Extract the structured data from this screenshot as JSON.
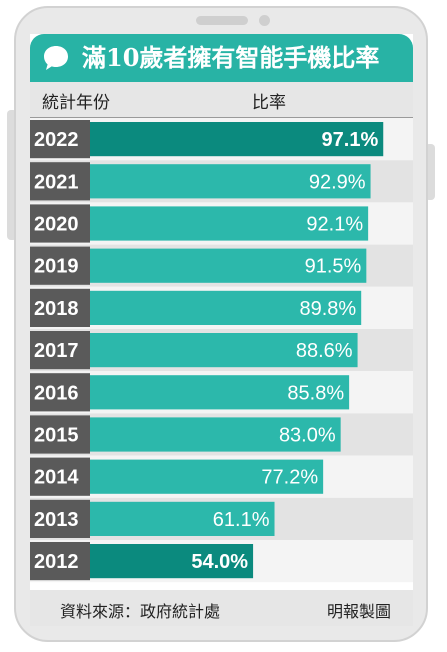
{
  "title": "滿10歲者擁有智能手機比率",
  "header": {
    "year_label": "統計年份",
    "ratio_label": "比率"
  },
  "footer": {
    "source": "資料來源：政府統計處",
    "credit": "明報製圖"
  },
  "colors": {
    "accent": "#28b3a5",
    "bar": "#2cb8ab",
    "bar_highlight": "#0b8a7e",
    "year_cell": "#5a5a5a",
    "row_light": "#f4f4f4",
    "row_dark": "#e3e3e3"
  },
  "chart_data": {
    "type": "bar",
    "orientation": "horizontal",
    "categories": [
      "2022",
      "2021",
      "2020",
      "2019",
      "2018",
      "2017",
      "2016",
      "2015",
      "2014",
      "2013",
      "2012"
    ],
    "values": [
      97.1,
      92.9,
      92.1,
      91.5,
      89.8,
      88.6,
      85.8,
      83.0,
      77.2,
      61.1,
      54.0
    ],
    "labels": [
      "97.1%",
      "92.9%",
      "92.1%",
      "91.5%",
      "89.8%",
      "88.6%",
      "85.8%",
      "83.0%",
      "77.2%",
      "61.1%",
      "54.0%"
    ],
    "highlighted": [
      "2022",
      "2012"
    ],
    "xlim": [
      0,
      100
    ],
    "title": "滿10歲者擁有智能手機比率",
    "xlabel": "比率",
    "ylabel": "統計年份",
    "grid": false,
    "legend": "none"
  }
}
